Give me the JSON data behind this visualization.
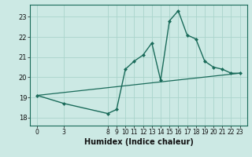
{
  "title": "",
  "xlabel": "Humidex (Indice chaleur)",
  "ylabel": "",
  "bg_color": "#cce9e4",
  "line_color": "#1a6b5a",
  "grid_color": "#aad4cc",
  "xticks": [
    0,
    3,
    8,
    9,
    10,
    11,
    12,
    13,
    14,
    15,
    16,
    17,
    18,
    19,
    20,
    21,
    22,
    23
  ],
  "yticks": [
    18,
    19,
    20,
    21,
    22,
    23
  ],
  "ylim": [
    17.6,
    23.6
  ],
  "xlim": [
    -0.8,
    23.8
  ],
  "line1_x": [
    0,
    3,
    8,
    9,
    10,
    11,
    12,
    13,
    14,
    15,
    16,
    17,
    18,
    19,
    20,
    21,
    22,
    23
  ],
  "line1_y": [
    19.1,
    18.7,
    18.2,
    18.4,
    20.4,
    20.8,
    21.1,
    21.7,
    19.85,
    22.8,
    23.3,
    22.1,
    21.9,
    20.8,
    20.5,
    20.4,
    20.2,
    20.2
  ],
  "line2_x": [
    0,
    23
  ],
  "line2_y": [
    19.1,
    20.2
  ],
  "xlabel_fontsize": 7,
  "tick_fontsize": 5.5,
  "ytick_fontsize": 6
}
